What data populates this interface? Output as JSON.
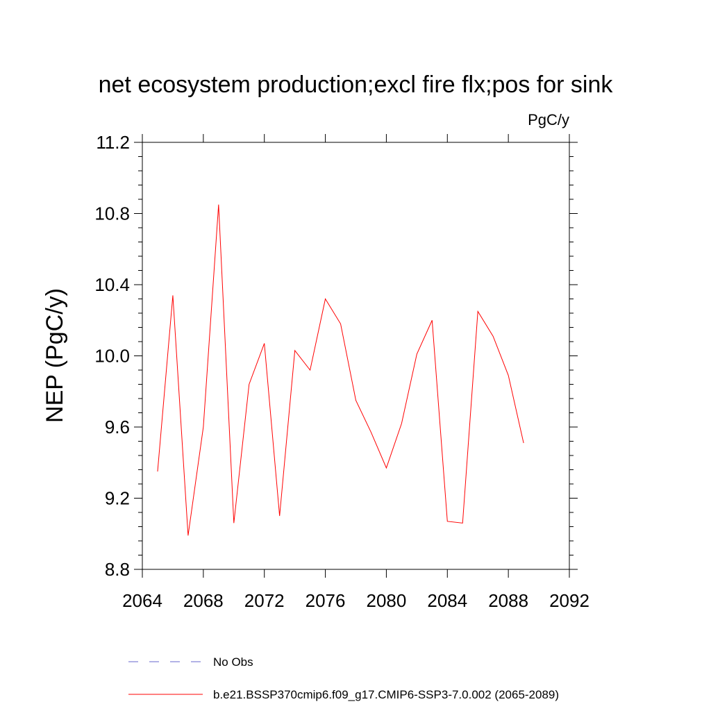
{
  "chart_data": {
    "type": "line",
    "title": "net ecosystem production;excl fire flx;pos for sink",
    "units_label": "PgC/y",
    "ylabel": "NEP  (PgC/y)",
    "xlabel": "",
    "xlim": [
      2064,
      2092
    ],
    "ylim": [
      8.8,
      11.2
    ],
    "x_ticks": [
      2064,
      2068,
      2072,
      2076,
      2080,
      2084,
      2088,
      2092
    ],
    "x_tick_labels": [
      "2064",
      "2068",
      "2072",
      "2076",
      "2080",
      "2084",
      "2088",
      "2092"
    ],
    "y_ticks": [
      8.8,
      9.2,
      9.6,
      10.0,
      10.4,
      10.8,
      11.2
    ],
    "y_tick_labels": [
      "8.8",
      "9.2",
      "9.6",
      "10.0",
      "10.4",
      "10.8",
      "11.2"
    ],
    "grid": false,
    "legend_position": "bottom",
    "series": [
      {
        "name": "b.e21.BSSP370cmip6.f09_g17.CMIP6-SSP3-7.0.002 (2065-2089)",
        "color": "#ff0000",
        "style": "solid",
        "x": [
          2065,
          2066,
          2067,
          2068,
          2069,
          2070,
          2071,
          2072,
          2073,
          2074,
          2075,
          2076,
          2077,
          2078,
          2079,
          2080,
          2081,
          2082,
          2083,
          2084,
          2085,
          2086,
          2087,
          2088,
          2089
        ],
        "values": [
          9.35,
          10.34,
          8.99,
          9.6,
          10.85,
          9.06,
          9.84,
          10.07,
          9.1,
          10.03,
          9.92,
          10.32,
          10.18,
          9.75,
          9.57,
          9.37,
          9.62,
          10.01,
          10.2,
          9.07,
          9.06,
          10.25,
          10.11,
          9.89,
          9.51
        ]
      },
      {
        "name": "No Obs",
        "color": "#6666cc",
        "style": "dashed",
        "x": [],
        "values": []
      }
    ]
  }
}
